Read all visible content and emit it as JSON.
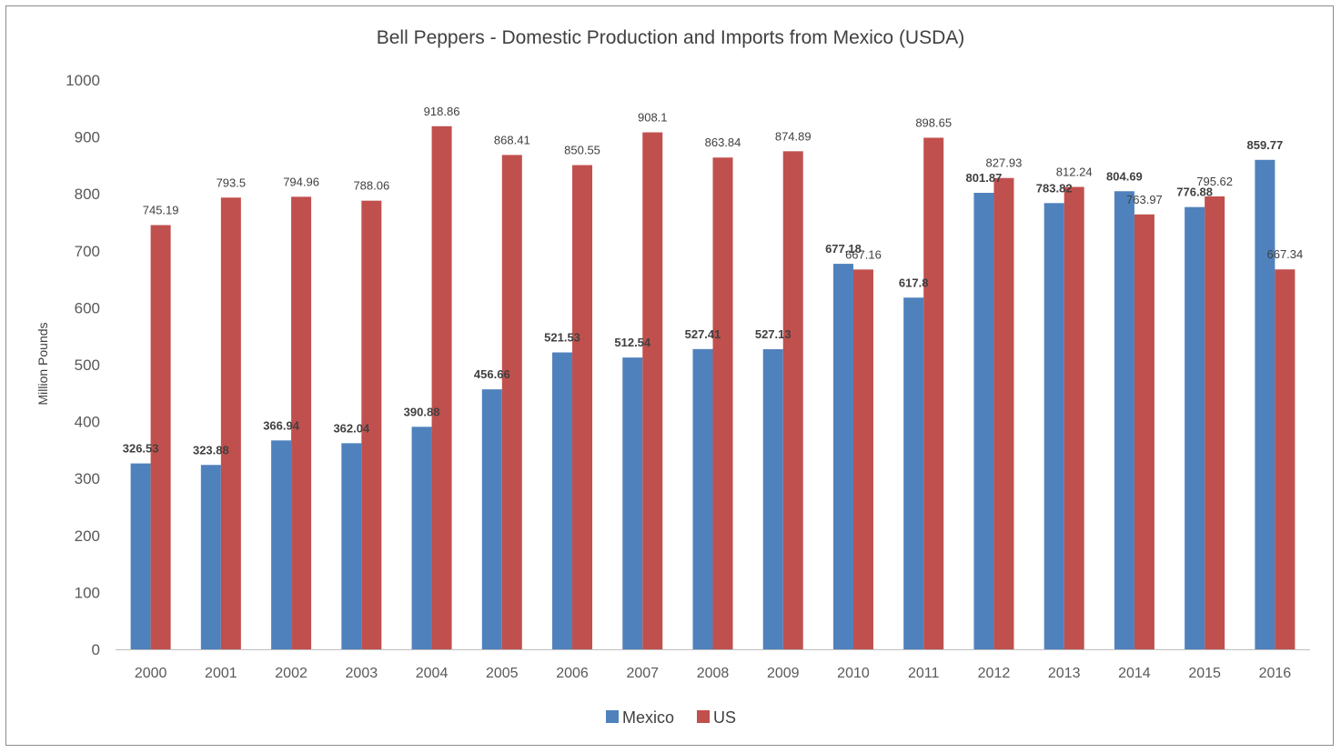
{
  "chart_data": {
    "type": "bar",
    "title": "Bell Peppers - Domestic Production and Imports from Mexico (USDA)",
    "xlabel": "",
    "ylabel": "Million Pounds",
    "ylim": [
      0,
      1000
    ],
    "yticks": [
      0,
      100,
      200,
      300,
      400,
      500,
      600,
      700,
      800,
      900,
      1000
    ],
    "grid": false,
    "legend_position": "bottom",
    "categories": [
      "2000",
      "2001",
      "2002",
      "2003",
      "2004",
      "2005",
      "2006",
      "2007",
      "2008",
      "2009",
      "2010",
      "2011",
      "2012",
      "2013",
      "2014",
      "2015",
      "2016"
    ],
    "series": [
      {
        "name": "Mexico",
        "color": "#4f81bd",
        "label_weight": "bold",
        "values": [
          326.53,
          323.88,
          366.94,
          362.04,
          390.88,
          456.66,
          521.53,
          512.54,
          527.41,
          527.13,
          677.18,
          617.8,
          801.87,
          783.82,
          804.69,
          776.88,
          859.77
        ],
        "labels": [
          "326.53",
          "323.88",
          "366.94",
          "362.04",
          "390.88",
          "456.66",
          "521.53",
          "512.54",
          "527.41",
          "527.13",
          "677.18",
          "617.8",
          "801.87",
          "783.82",
          "804.69",
          "776.88",
          "859.77"
        ]
      },
      {
        "name": "US",
        "color": "#c0504d",
        "label_weight": "normal",
        "values": [
          745.19,
          793.5,
          794.96,
          788.06,
          918.86,
          868.41,
          850.55,
          908.1,
          863.84,
          874.89,
          667.16,
          898.65,
          827.93,
          812.24,
          763.97,
          795.62,
          667.34
        ],
        "labels": [
          "745.19",
          "793.5",
          "794.96",
          "788.06",
          "918.86",
          "868.41",
          "850.55",
          "908.1",
          "863.84",
          "874.89",
          "667.16",
          "898.65",
          "827.93",
          "812.24",
          "763.97",
          "795.62",
          "667.34"
        ]
      }
    ]
  }
}
